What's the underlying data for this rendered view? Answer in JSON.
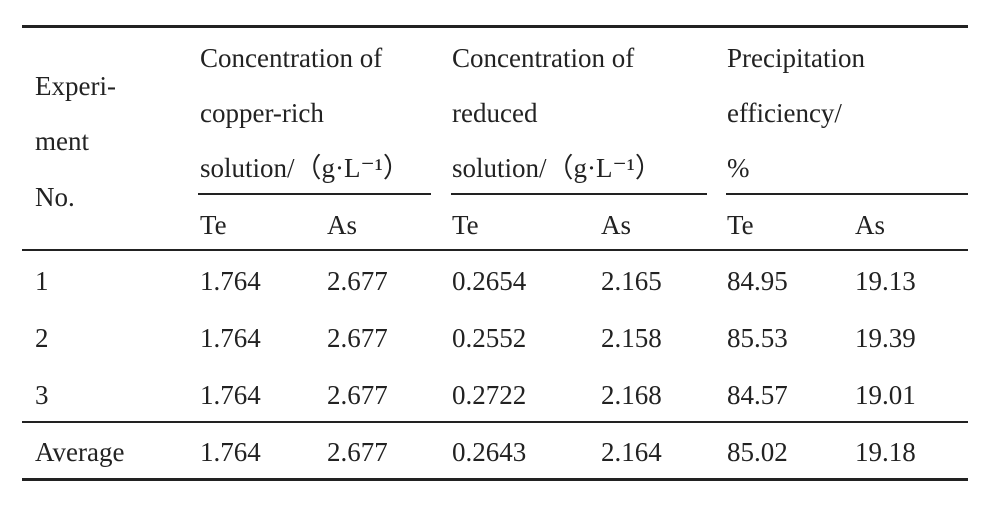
{
  "table": {
    "experiment_header": [
      "Experi-",
      "ment",
      "No."
    ],
    "group_headers": [
      [
        "Concentration of",
        "copper-rich",
        "solution/（g·L⁻¹）"
      ],
      [
        "Concentration of",
        "reduced",
        "solution/（g·L⁻¹）"
      ],
      [
        "Precipitation",
        "efficiency/",
        "%"
      ]
    ],
    "sub_headers": [
      "Te",
      "As",
      "Te",
      "As",
      "Te",
      "As"
    ],
    "rows": [
      [
        "1",
        "1.764",
        "2.677",
        "0.2654",
        "2.165",
        "84.95",
        "19.13"
      ],
      [
        "2",
        "1.764",
        "2.677",
        "0.2552",
        "2.158",
        "85.53",
        "19.39"
      ],
      [
        "3",
        "1.764",
        "2.677",
        "0.2722",
        "2.168",
        "84.57",
        "19.01"
      ],
      [
        "Average",
        "1.764",
        "2.677",
        "0.2643",
        "2.164",
        "85.02",
        "19.18"
      ]
    ]
  }
}
